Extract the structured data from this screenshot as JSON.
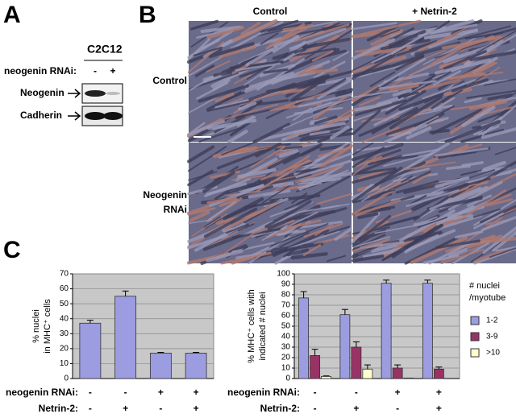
{
  "panels": {
    "a": {
      "label": "A",
      "cell_line": "C2C12",
      "row_header": "neogenin RNAi:",
      "lanes": [
        "-",
        "+"
      ],
      "bands": [
        "Neogenin",
        "Cadherin"
      ]
    },
    "b": {
      "label": "B",
      "columns": [
        "Control",
        "+ Netrin-2"
      ],
      "rows": [
        {
          "lines": [
            "Control"
          ]
        },
        {
          "lines": [
            "Neogenin",
            "RNAi"
          ]
        }
      ]
    },
    "c": {
      "label": "C"
    }
  },
  "chart_data": [
    {
      "type": "bar",
      "ylabel": [
        "% nuclei",
        "in MHC⁺ cells"
      ],
      "values": [
        37,
        55,
        17,
        17
      ],
      "errors": [
        2,
        3.5,
        0.5,
        0.5
      ],
      "color": "#9c9ce0",
      "ylim": [
        0,
        70
      ],
      "yticks": [
        0,
        10,
        20,
        30,
        40,
        50,
        60,
        70
      ],
      "grid": true,
      "conditions": [
        {
          "name": "neogenin RNAi:",
          "values": [
            "-",
            "-",
            "+",
            "+"
          ]
        },
        {
          "name": "Netrin-2:",
          "values": [
            "-",
            "+",
            "-",
            "+"
          ]
        }
      ]
    },
    {
      "type": "bar",
      "ylabel": [
        "% MHC⁺ cells with",
        "indicated # nuclei"
      ],
      "series": [
        {
          "name": "1-2",
          "color": "#9c9ce0",
          "values": [
            77,
            61,
            91,
            91
          ],
          "errors": [
            6,
            5,
            3,
            3
          ]
        },
        {
          "name": "3-9",
          "color": "#993366",
          "values": [
            22,
            30,
            10,
            9
          ],
          "errors": [
            6,
            5,
            3,
            2
          ]
        },
        {
          "name": ">10",
          "color": "#ffffcc",
          "values": [
            2,
            9,
            0.5,
            0
          ],
          "errors": [
            0.5,
            4,
            0,
            0
          ]
        }
      ],
      "legend_title": [
        "# nuclei",
        "/myotube"
      ],
      "ylim": [
        0,
        100
      ],
      "yticks": [
        0,
        10,
        20,
        30,
        40,
        50,
        60,
        70,
        80,
        90,
        100
      ],
      "grid": true,
      "conditions": [
        {
          "name": "neogenin RNAi:",
          "values": [
            "-",
            "-",
            "+",
            "+"
          ]
        },
        {
          "name": "Netrin-2:",
          "values": [
            "-",
            "+",
            "-",
            "+"
          ]
        }
      ]
    }
  ]
}
